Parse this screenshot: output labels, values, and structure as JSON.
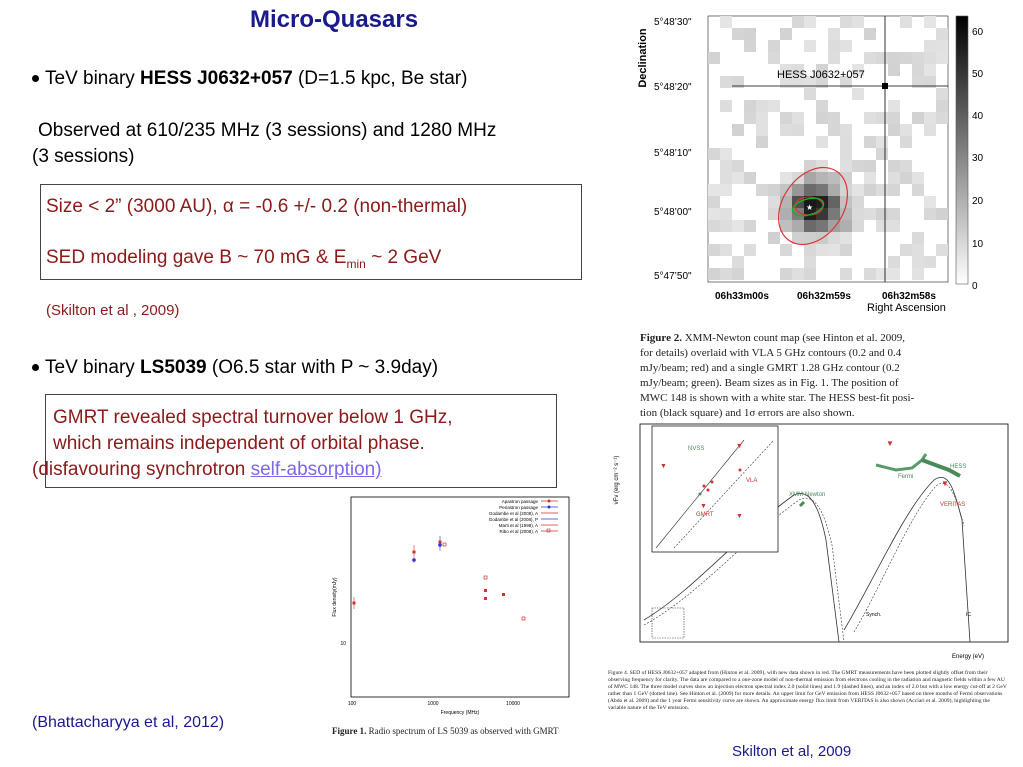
{
  "title": "Micro-Quasars",
  "hess": {
    "bullet_prefix": "TeV binary ",
    "bullet_name": "HESS J0632+057",
    "bullet_suffix": " (D=1.5 kpc, Be star)",
    "observed_line1": "Observed at 610/235 MHz (3 sessions) and 1280 MHz",
    "observed_line2": "(3 sessions)",
    "box_line1": "Size < 2” (3000 AU),  α = -0.6 +/- 0.2 (non-thermal)",
    "box_line2_pre": "SED modeling gave B ~ 70 mG & E",
    "box_line2_sub": "min",
    "box_line2_post": " ~ 2 GeV",
    "ref": "(Skilton et al , 2009)"
  },
  "ls5039": {
    "bullet_prefix": "TeV binary ",
    "bullet_name": "LS5039",
    "bullet_suffix": " (O6.5 star with P ~ 3.9day)",
    "box_line1": "GMRT revealed spectral turnover below 1 GHz,",
    "box_line2": "which remains independent of orbital phase.",
    "box_line3_pre": "(disfavouring synchrotron ",
    "box_line3_link": "self-absorption)",
    "ref": "(Bhattacharyya et al, 2012)",
    "fig_caption_label": "Figure 1.",
    "fig_caption_text": "Radio spectrum of LS 5039 as observed with GMRT",
    "legend": [
      "Apastron passage",
      "Periastron passage",
      "Godambe et al (2008), A",
      "Godambe et al (2008), P",
      "Marti et al (1998), A",
      "Ribo et al (2008), A"
    ],
    "ylabel": "Flux density(mJy)",
    "xlabel": "Frequency (MHz)",
    "xticks": [
      "100",
      "1000",
      "10000"
    ],
    "yticks": [
      "10"
    ]
  },
  "hess_map": {
    "ylabel": "Declination",
    "xlabel": "Right Ascension",
    "source_label": "HESS J0632+057",
    "dec_ticks": [
      "5°48’30\"",
      "5°48’20\"",
      "5°48’10\"",
      "5°48’00\"",
      "5°47’50\""
    ],
    "ra_ticks": [
      "06h33m00s",
      "06h32m59s",
      "06h32m58s"
    ],
    "colorbar_ticks": [
      "60",
      "50",
      "40",
      "30",
      "20",
      "10",
      "0"
    ],
    "caption_label": "Figure 2.",
    "caption_lines": [
      "XMM-Newton count map (see Hinton et al. 2009,",
      "for details) overlaid with VLA 5 GHz contours (0.2 and 0.4",
      "mJy/beam; red) and a single GMRT 1.28 GHz contour (0.2",
      "mJy/beam; green). Beam sizes as in Fig. 1. The position of",
      "MWC 148 is shown with a white star. The HESS best-fit posi-",
      "tion (black square) and 1σ errors are also shown."
    ]
  },
  "sed": {
    "ylabel": "νFν (erg cm⁻² s⁻¹)",
    "xlabel": "Energy (eV)",
    "labels": {
      "nvss": "NVSS",
      "vla": "VLA",
      "gmrt": "GMRT",
      "xmm": "XMM-Newton",
      "fermi": "Fermi",
      "hess": "HESS",
      "veritas": "VERITAS",
      "synch": "Synch.",
      "ic": "IC"
    },
    "caption": "Figure 4. SED of HESS J0632+057 adapted from (Hinton et al. 2009), with new data shown in red. The GMRT measurements have been plotted slightly offset from their observing frequency for clarity. The data are compared to a one-zone model of non-thermal emission from electrons cooling in the radiation and magnetic fields within a few AU of MWC 148. The three model curves show an injection electron spectral index 2.0 (solid lines) and 1.9 (dashed lines), and an index of 2.0 but with a low energy cut-off at 2 GeV rather than 1 GeV (dotted line). See Hinton et al. (2009) for more details. An upper limit for GeV emission from HESS J0632+057 based on three months of Fermi observations (Abdo et al. 2009) and the 1 year Fermi sensitivity curve are shown. An approximate energy flux limit from VERITAS is also shown (Acciari et al. 2009), highlighting the variable nature of the TeV emission.",
    "ref": "Skilton et al, 2009"
  }
}
